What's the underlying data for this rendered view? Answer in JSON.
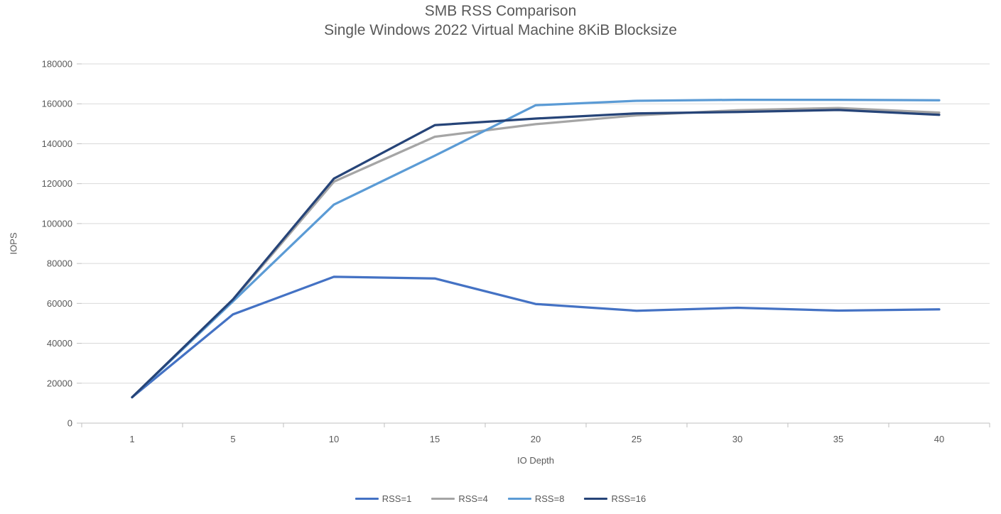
{
  "chart_data": {
    "type": "line",
    "title": "SMB RSS Comparison",
    "subtitle": "Single Windows 2022 Virtual Machine 8KiB Blocksize",
    "xlabel": "IO Depth",
    "ylabel": "IOPS",
    "categories": [
      1,
      5,
      10,
      15,
      20,
      25,
      30,
      35,
      40
    ],
    "ylim": [
      0,
      180000
    ],
    "ytick_step": 20000,
    "grid": "horizontal",
    "legend_position": "bottom",
    "text_color": "#595959",
    "grid_color": "#D9D9D9",
    "axis_color": "#BFBFBF",
    "series": [
      {
        "name": "RSS=1",
        "color": "#4472C4",
        "values": [
          13000,
          54500,
          73300,
          72500,
          59700,
          56300,
          57800,
          56400,
          57000
        ]
      },
      {
        "name": "RSS=4",
        "color": "#A5A5A5",
        "values": [
          13000,
          61500,
          121000,
          143500,
          149800,
          154200,
          156800,
          157900,
          155600
        ]
      },
      {
        "name": "RSS=8",
        "color": "#5B9BD5",
        "values": [
          13000,
          61000,
          109500,
          134000,
          159300,
          161500,
          162000,
          162000,
          161800
        ]
      },
      {
        "name": "RSS=16",
        "color": "#264478",
        "values": [
          13000,
          62000,
          122500,
          149300,
          152600,
          155200,
          155900,
          156900,
          154500
        ]
      }
    ]
  }
}
